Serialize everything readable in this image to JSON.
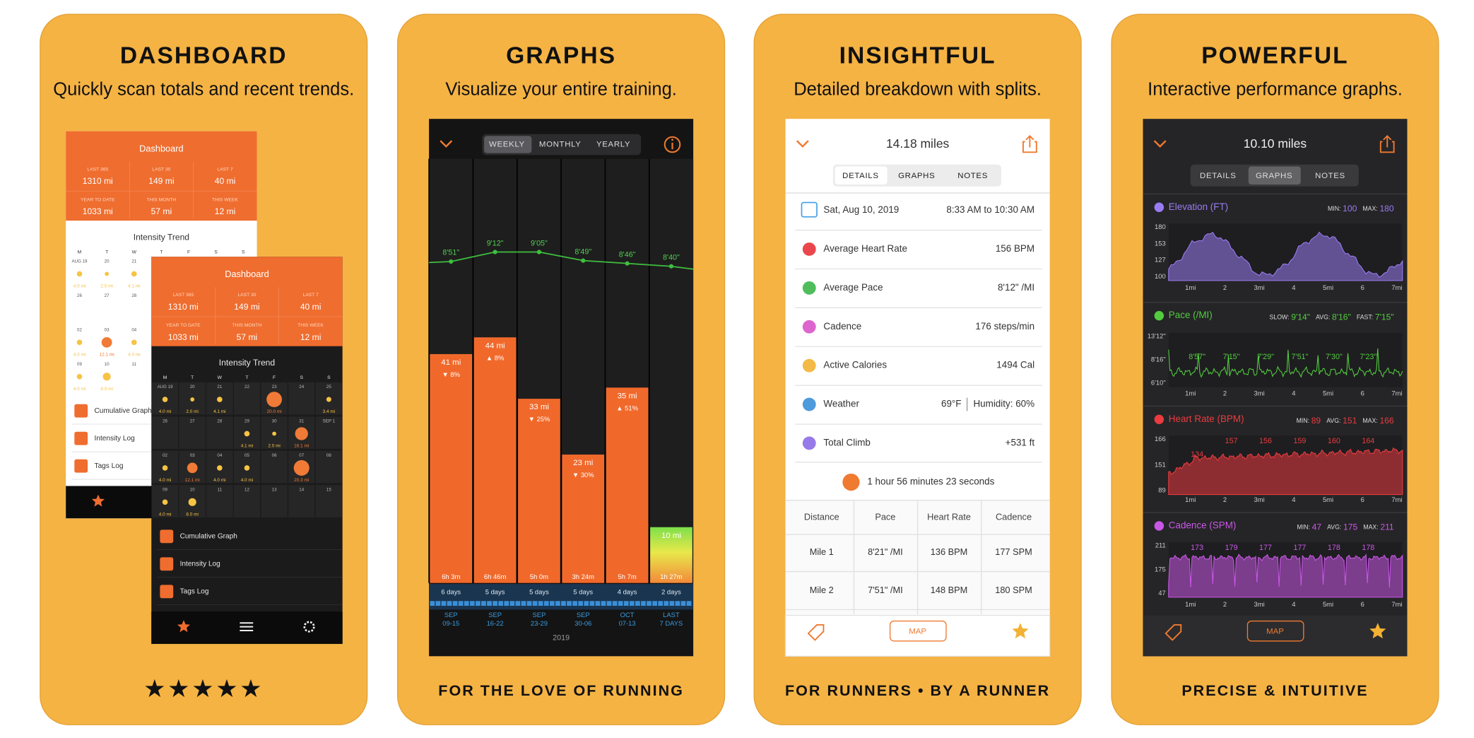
{
  "panels": [
    {
      "title": "DASHBOARD",
      "subtitle": "Quickly scan totals and recent trends.",
      "footer": "★★★★★"
    },
    {
      "title": "GRAPHS",
      "subtitle": "Visualize your entire training.",
      "footer": "FOR THE LOVE OF RUNNING"
    },
    {
      "title": "INSIGHTFUL",
      "subtitle": "Detailed breakdown with splits.",
      "footer": "FOR RUNNERS • BY A RUNNER"
    },
    {
      "title": "POWERFUL",
      "subtitle": "Interactive performance graphs.",
      "footer": "PRECISE & INTUITIVE"
    }
  ],
  "dashboard": {
    "title": "Dashboard",
    "stats": [
      {
        "label": "LAST 365",
        "value": "1310 mi"
      },
      {
        "label": "LAST 30",
        "value": "149 mi"
      },
      {
        "label": "LAST 7",
        "value": "40 mi"
      },
      {
        "label": "YEAR TO DATE",
        "value": "1033 mi"
      },
      {
        "label": "THIS MONTH",
        "value": "57 mi"
      },
      {
        "label": "THIS WEEK",
        "value": "12 mi"
      }
    ],
    "trend_title": "Intensity Trend",
    "weekdays": [
      "M",
      "T",
      "W",
      "T",
      "F",
      "S",
      "S"
    ],
    "weeks": [
      {
        "dates": [
          "AUG 19",
          "20",
          "21",
          "22",
          "23",
          "24",
          "25"
        ],
        "distances": [
          "4.0 mi",
          "2.0 mi",
          "4.1 mi",
          null,
          "20.0 mi",
          null,
          "3.4 mi"
        ]
      },
      {
        "dates": [
          "26",
          "27",
          "28",
          "29",
          "30",
          "31",
          "SEP 1"
        ],
        "distances": [
          null,
          null,
          null,
          "4.1 mi",
          "2.0 mi",
          "16.1 mi",
          null
        ]
      },
      {
        "dates": [
          "02",
          "03",
          "04",
          "05",
          "06",
          "07",
          "08"
        ],
        "distances": [
          "4.0 mi",
          "12.1 mi",
          "4.0 mi",
          "4.0 mi",
          null,
          "20.3 mi",
          null
        ]
      },
      {
        "dates": [
          "09",
          "10",
          "11",
          "12",
          "13",
          "14",
          "15"
        ],
        "distances": [
          "4.0 mi",
          "8.0 mi",
          null,
          null,
          null,
          null,
          null
        ]
      }
    ],
    "menu": [
      "Cumulative Graph",
      "Intensity Log",
      "Tags Log"
    ]
  },
  "graphs": {
    "tabs": [
      "WEEKLY",
      "MONTHLY",
      "YEARLY"
    ],
    "values": [
      41,
      44,
      33,
      23,
      35,
      10
    ],
    "value_labels": [
      "41 mi",
      "44 mi",
      "33 mi",
      "23 mi",
      "35 mi",
      "10 mi"
    ],
    "changes": [
      "▼ 8%",
      "▲ 8%",
      "▼ 25%",
      "▼ 30%",
      "▲ 51%",
      null
    ],
    "paces": [
      "8'51\"",
      "9'12\"",
      "9'05\"",
      "8'49\"",
      "8'46\"",
      "8'40\""
    ],
    "durations": [
      "6h 3m",
      "6h 46m",
      "5h 0m",
      "3h 24m",
      "5h 7m",
      "1h 27m"
    ],
    "days": [
      "6 days",
      "5 days",
      "5 days",
      "5 days",
      "4 days",
      "2 days"
    ],
    "date_top": [
      "SEP",
      "SEP",
      "SEP",
      "SEP",
      "OCT",
      "LAST"
    ],
    "date_bottom": [
      "09-15",
      "16-22",
      "23-29",
      "30-06",
      "07-13",
      "7 DAYS"
    ],
    "year": "2019"
  },
  "details": {
    "distance": "14.18 miles",
    "tabs": [
      "DETAILS",
      "GRAPHS",
      "NOTES"
    ],
    "date": "Sat, Aug 10, 2019",
    "time": "8:33 AM to 10:30 AM",
    "rows": [
      {
        "label": "Average Heart Rate",
        "value": "156 BPM"
      },
      {
        "label": "Average Pace",
        "value": "8'12\" /MI"
      },
      {
        "label": "Cadence",
        "value": "176 steps/min"
      },
      {
        "label": "Active Calories",
        "value": "1494 Cal"
      },
      {
        "label": "Weather",
        "value": "69°F",
        "extra": "Humidity: 60%"
      },
      {
        "label": "Total Climb",
        "value": "+531 ft"
      }
    ],
    "duration": "1 hour 56 minutes 23 seconds",
    "split_columns": [
      "Distance",
      "Pace",
      "Heart Rate",
      "Cadence"
    ],
    "splits": [
      [
        "Mile 1",
        "8'21\" /MI",
        "136 BPM",
        "177 SPM"
      ],
      [
        "Mile 2",
        "7'51\" /MI",
        "148 BPM",
        "180 SPM"
      ]
    ],
    "map": "MAP"
  },
  "performance": {
    "distance": "10.10 miles",
    "tabs": [
      "DETAILS",
      "GRAPHS",
      "NOTES"
    ],
    "xticks": [
      "1mi",
      "2",
      "3mi",
      "4",
      "5mi",
      "6",
      "7mi"
    ],
    "graphs": [
      {
        "title": "Elevation (FT)",
        "color": "#9a7cf2",
        "stats": [
          {
            "label": "MIN:",
            "value": "100"
          },
          {
            "label": "MAX:",
            "value": "180"
          }
        ],
        "yticks": [
          "180",
          "153",
          "127",
          "100"
        ],
        "annotations": []
      },
      {
        "title": "Pace (/MI)",
        "color": "#52cc3e",
        "stats": [
          {
            "label": "SLOW:",
            "value": "9'14\""
          },
          {
            "label": "AVG:",
            "value": "8'16\""
          },
          {
            "label": "FAST:",
            "value": "7'15\""
          }
        ],
        "yticks": [
          "13'12\"",
          "8'16\"",
          "6'10\""
        ],
        "annotations": [
          "8'57\"",
          "7'15\"",
          "7'29\"",
          "7'51\"",
          "7'30\"",
          "7'23\""
        ]
      },
      {
        "title": "Heart Rate (BPM)",
        "color": "#ea3b3f",
        "stats": [
          {
            "label": "MIN:",
            "value": "89"
          },
          {
            "label": "AVG:",
            "value": "151"
          },
          {
            "label": "MAX:",
            "value": "166"
          }
        ],
        "yticks": [
          "166",
          "151",
          "89"
        ],
        "annotations": [
          "134",
          "157",
          "156",
          "159",
          "160",
          "164"
        ]
      },
      {
        "title": "Cadence (SPM)",
        "color": "#c957e6",
        "stats": [
          {
            "label": "MIN:",
            "value": "47"
          },
          {
            "label": "AVG:",
            "value": "175"
          },
          {
            "label": "MAX:",
            "value": "211"
          }
        ],
        "yticks": [
          "211",
          "175",
          "47"
        ],
        "annotations": [
          "173",
          "179",
          "177",
          "177",
          "178",
          "178"
        ]
      }
    ],
    "map": "MAP"
  }
}
